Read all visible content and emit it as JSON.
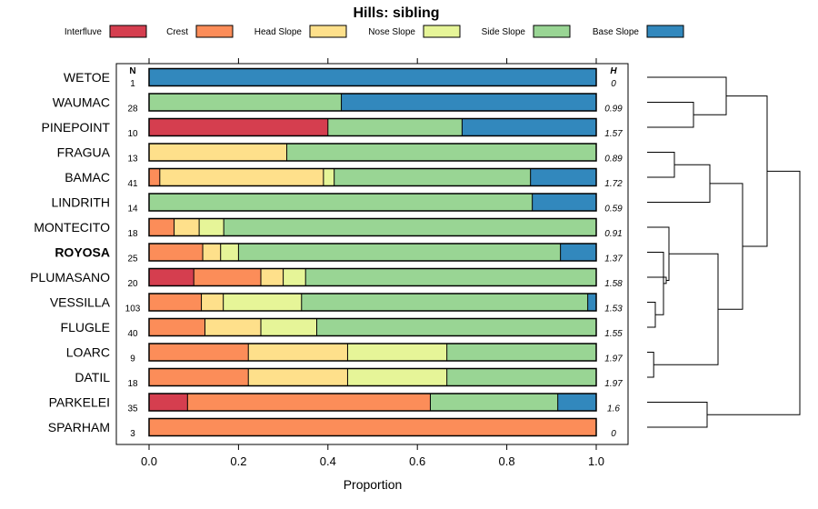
{
  "chart_data": {
    "type": "bar",
    "subtype": "stacked-horizontal-proportion-with-dendrogram",
    "title": "Hills: sibling",
    "xlabel": "Proportion",
    "ylabel": "",
    "xlim": [
      0,
      1
    ],
    "xticks": [
      0,
      0.2,
      0.4,
      0.6,
      0.8,
      1
    ],
    "xtick_labels": [
      "0.0",
      "0.2",
      "0.4",
      "0.6",
      "0.8",
      "1.0"
    ],
    "n_header": "N",
    "h_header": "H",
    "legend": [
      {
        "name": "Interfluve",
        "color": "#d53e4f"
      },
      {
        "name": "Crest",
        "color": "#fc8d59"
      },
      {
        "name": "Head Slope",
        "color": "#fee08b"
      },
      {
        "name": "Nose Slope",
        "color": "#e6f598"
      },
      {
        "name": "Side Slope",
        "color": "#99d594"
      },
      {
        "name": "Base Slope",
        "color": "#3288bd"
      }
    ],
    "rows": [
      {
        "label": "WETOE",
        "n": "1",
        "h": "0",
        "bold": false,
        "values": [
          0,
          0,
          0,
          0,
          0,
          1.0
        ]
      },
      {
        "label": "WAUMAC",
        "n": "28",
        "h": "0.99",
        "bold": false,
        "values": [
          0,
          0,
          0,
          0,
          0.43,
          0.57
        ]
      },
      {
        "label": "PINEPOINT",
        "n": "10",
        "h": "1.57",
        "bold": false,
        "values": [
          0.4,
          0,
          0,
          0,
          0.3,
          0.3
        ]
      },
      {
        "label": "FRAGUA",
        "n": "13",
        "h": "0.89",
        "bold": false,
        "values": [
          0,
          0,
          0.308,
          0,
          0.692,
          0
        ]
      },
      {
        "label": "BAMAC",
        "n": "41",
        "h": "1.72",
        "bold": false,
        "values": [
          0,
          0.024,
          0.366,
          0.024,
          0.439,
          0.147
        ]
      },
      {
        "label": "LINDRITH",
        "n": "14",
        "h": "0.59",
        "bold": false,
        "values": [
          0,
          0,
          0,
          0,
          0.857,
          0.143
        ]
      },
      {
        "label": "MONTECITO",
        "n": "18",
        "h": "0.91",
        "bold": false,
        "values": [
          0,
          0.056,
          0.056,
          0.055,
          0.833,
          0
        ]
      },
      {
        "label": "ROYOSA",
        "n": "25",
        "h": "1.37",
        "bold": true,
        "values": [
          0,
          0.12,
          0.04,
          0.04,
          0.72,
          0.08
        ]
      },
      {
        "label": "PLUMASANO",
        "n": "20",
        "h": "1.58",
        "bold": false,
        "values": [
          0.1,
          0.15,
          0.05,
          0.05,
          0.65,
          0
        ]
      },
      {
        "label": "VESSILLA",
        "n": "103",
        "h": "1.53",
        "bold": false,
        "values": [
          0,
          0.117,
          0.049,
          0.175,
          0.64,
          0.019
        ]
      },
      {
        "label": "FLUGLE",
        "n": "40",
        "h": "1.55",
        "bold": false,
        "values": [
          0,
          0.125,
          0.125,
          0.125,
          0.625,
          0
        ]
      },
      {
        "label": "LOARC",
        "n": "9",
        "h": "1.97",
        "bold": false,
        "values": [
          0,
          0.222,
          0.222,
          0.222,
          0.334,
          0
        ]
      },
      {
        "label": "DATIL",
        "n": "18",
        "h": "1.97",
        "bold": false,
        "values": [
          0,
          0.222,
          0.222,
          0.222,
          0.334,
          0
        ]
      },
      {
        "label": "PARKELEI",
        "n": "35",
        "h": "1.6",
        "bold": false,
        "values": [
          0.086,
          0.543,
          0,
          0,
          0.285,
          0.086
        ]
      },
      {
        "label": "SPARHAM",
        "n": "3",
        "h": "0",
        "bold": false,
        "values": [
          0,
          1.0,
          0,
          0,
          0,
          0
        ]
      }
    ],
    "dendrogram": {
      "leaves": [
        "WETOE",
        "WAUMAC",
        "PINEPOINT",
        "FRAGUA",
        "BAMAC",
        "LINDRITH",
        "MONTECITO",
        "ROYOSA",
        "PLUMASANO",
        "VESSILLA",
        "FLUGLE",
        "LOARC",
        "DATIL",
        "PARKELEI",
        "SPARHAM"
      ],
      "merges": [
        {
          "left": [
            "WAUMAC"
          ],
          "right": [
            "PINEPOINT"
          ],
          "height": 0.85
        },
        {
          "left": [
            "WETOE"
          ],
          "right": [
            "WAUMAC",
            "PINEPOINT"
          ],
          "height": 1.45
        },
        {
          "left": [
            "FRAGUA"
          ],
          "right": [
            "BAMAC"
          ],
          "height": 0.5
        },
        {
          "left": [
            "FRAGUA",
            "BAMAC"
          ],
          "right": [
            "LINDRITH"
          ],
          "height": 1.15
        },
        {
          "left": [
            "VESSILLA"
          ],
          "right": [
            "FLUGLE"
          ],
          "height": 0.15
        },
        {
          "left": [
            "ROYOSA"
          ],
          "right": [
            "VESSILLA",
            "FLUGLE"
          ],
          "height": 0.3
        },
        {
          "left": [
            "ROYOSA",
            "VESSILLA",
            "FLUGLE"
          ],
          "right": [
            "PLUMASANO"
          ],
          "height": 0.35
        },
        {
          "left": [
            "MONTECITO"
          ],
          "right": [
            "ROYOSA",
            "PLUMASANO",
            "VESSILLA",
            "FLUGLE"
          ],
          "height": 0.4
        },
        {
          "left": [
            "LOARC"
          ],
          "right": [
            "DATIL"
          ],
          "height": 0.12
        },
        {
          "left": [
            "MONTECITO",
            "ROYOSA",
            "PLUMASANO",
            "VESSILLA",
            "FLUGLE"
          ],
          "right": [
            "LOARC",
            "DATIL"
          ],
          "height": 1.3
        },
        {
          "left": [
            "FRAGUA",
            "BAMAC",
            "LINDRITH"
          ],
          "right": [
            "MONTECITO",
            "ROYOSA",
            "PLUMASANO",
            "VESSILLA",
            "FLUGLE",
            "LOARC",
            "DATIL"
          ],
          "height": 1.75
        },
        {
          "left": [
            "WETOE",
            "WAUMAC",
            "PINEPOINT"
          ],
          "right": [
            "FRAGUA",
            "BAMAC",
            "LINDRITH",
            "MONTECITO",
            "ROYOSA",
            "PLUMASANO",
            "VESSILLA",
            "FLUGLE",
            "LOARC",
            "DATIL"
          ],
          "height": 2.2
        },
        {
          "left": [
            "PARKELEI"
          ],
          "right": [
            "SPARHAM"
          ],
          "height": 1.1
        },
        {
          "left": [
            "WETOE",
            "WAUMAC",
            "PINEPOINT",
            "FRAGUA",
            "BAMAC",
            "LINDRITH",
            "MONTECITO",
            "ROYOSA",
            "PLUMASANO",
            "VESSILLA",
            "FLUGLE",
            "LOARC",
            "DATIL"
          ],
          "right": [
            "PARKELEI",
            "SPARHAM"
          ],
          "height": 2.8
        }
      ]
    }
  }
}
